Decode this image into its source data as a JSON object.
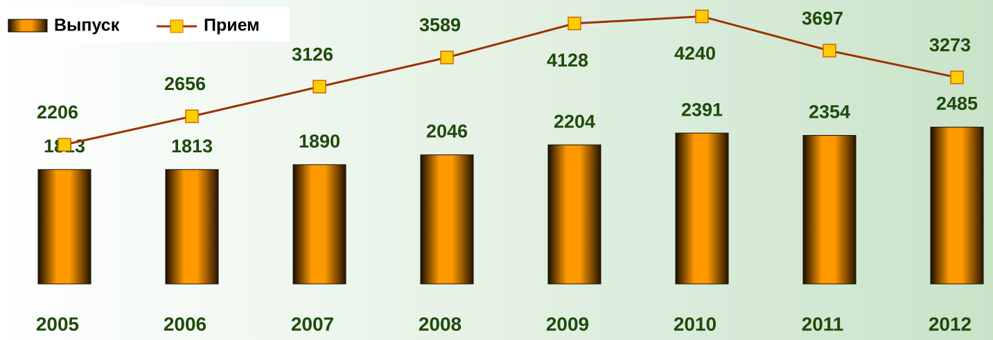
{
  "chart_data": {
    "type": "bar-line",
    "categories": [
      "2005",
      "2006",
      "2007",
      "2008",
      "2009",
      "2010",
      "2011",
      "2012"
    ],
    "series": [
      {
        "name": "Выпуск",
        "type": "bar",
        "color": "#ff9900",
        "values": [
          1813,
          1813,
          1890,
          2046,
          2204,
          2391,
          2354,
          2485
        ]
      },
      {
        "name": "Прием",
        "type": "line",
        "color": "#993300",
        "marker_color": "#ffcc00",
        "values": [
          2206,
          2656,
          3126,
          3589,
          4128,
          4240,
          3697,
          3273
        ]
      }
    ],
    "ylim": [
      0,
      4500
    ],
    "legend": "top-left"
  }
}
